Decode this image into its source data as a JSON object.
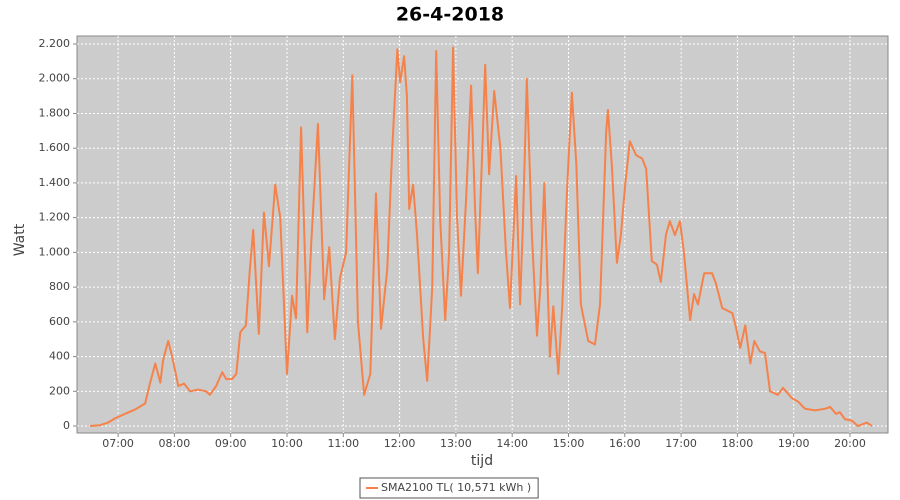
{
  "chart_data": {
    "type": "line",
    "title": "26-4-2018",
    "x_label": "tijd",
    "y_label": "Watt",
    "xlim": [
      6.27,
      20.675
    ],
    "ylim": [
      -40,
      2246
    ],
    "xticks": [
      {
        "value": 7,
        "label": "07:00"
      },
      {
        "value": 8,
        "label": "08:00"
      },
      {
        "value": 9,
        "label": "09:00"
      },
      {
        "value": 10,
        "label": "10:00"
      },
      {
        "value": 11,
        "label": "11:00"
      },
      {
        "value": 12,
        "label": "12:00"
      },
      {
        "value": 13,
        "label": "13:00"
      },
      {
        "value": 14,
        "label": "14:00"
      },
      {
        "value": 15,
        "label": "15:00"
      },
      {
        "value": 16,
        "label": "16:00"
      },
      {
        "value": 17,
        "label": "17:00"
      },
      {
        "value": 18,
        "label": "18:00"
      },
      {
        "value": 19,
        "label": "19:00"
      },
      {
        "value": 20,
        "label": "20:00"
      }
    ],
    "yticks": [
      0,
      200,
      400,
      600,
      800,
      {
        "value": 1000,
        "label": "1.000"
      },
      {
        "value": 1200,
        "label": "1.200"
      },
      {
        "value": 1400,
        "label": "1.400"
      },
      {
        "value": 1600,
        "label": "1.600"
      },
      {
        "value": 1800,
        "label": "1.800"
      },
      {
        "value": 2000,
        "label": "2.000"
      },
      {
        "value": 2200,
        "label": "2.200"
      }
    ],
    "grid": true,
    "legend": "bottom",
    "x": [
      6.5,
      6.68,
      6.82,
      6.95,
      7.12,
      7.3,
      7.48,
      7.57,
      7.66,
      7.75,
      7.8,
      7.89,
      7.96,
      8.07,
      8.17,
      8.28,
      8.42,
      8.56,
      8.63,
      8.74,
      8.85,
      8.92,
      9.02,
      9.1,
      9.17,
      9.27,
      9.34,
      9.4,
      9.5,
      9.59,
      9.68,
      9.79,
      9.88,
      10.0,
      10.09,
      10.16,
      10.25,
      10.36,
      10.43,
      10.55,
      10.66,
      10.75,
      10.85,
      10.94,
      11.05,
      11.16,
      11.26,
      11.37,
      11.48,
      11.58,
      11.67,
      11.78,
      11.87,
      11.96,
      12.01,
      12.08,
      12.13,
      12.17,
      12.24,
      12.31,
      12.42,
      12.49,
      12.58,
      12.65,
      12.72,
      12.81,
      12.88,
      12.95,
      13.02,
      13.09,
      13.18,
      13.27,
      13.34,
      13.39,
      13.47,
      13.52,
      13.59,
      13.68,
      13.79,
      13.89,
      13.96,
      14.07,
      14.14,
      14.19,
      14.26,
      14.35,
      14.44,
      14.5,
      14.57,
      14.64,
      14.67,
      14.73,
      14.82,
      14.89,
      14.98,
      15.06,
      15.14,
      15.22,
      15.35,
      15.47,
      15.56,
      15.67,
      15.7,
      15.77,
      15.86,
      15.93,
      16.01,
      16.09,
      16.2,
      16.31,
      16.38,
      16.48,
      16.57,
      16.64,
      16.73,
      16.8,
      16.89,
      16.98,
      17.05,
      17.16,
      17.23,
      17.3,
      17.41,
      17.55,
      17.62,
      17.73,
      17.91,
      17.98,
      18.05,
      18.14,
      18.23,
      18.3,
      18.4,
      18.49,
      18.58,
      18.72,
      18.81,
      18.97,
      19.08,
      19.2,
      19.38,
      19.56,
      19.65,
      19.75,
      19.82,
      19.91,
      20.04,
      20.14,
      20.3,
      20.39
    ],
    "series": [
      {
        "name": "SMA2100 TL( 10,571 kWh )",
        "color": "#f5824a",
        "values": [
          0,
          5,
          20,
          45,
          70,
          95,
          130,
          250,
          360,
          250,
          380,
          490,
          400,
          230,
          245,
          200,
          210,
          200,
          180,
          230,
          310,
          270,
          270,
          300,
          540,
          580,
          900,
          1130,
          530,
          1230,
          920,
          1390,
          1200,
          300,
          750,
          620,
          1720,
          540,
          1050,
          1740,
          730,
          1030,
          500,
          850,
          1000,
          2020,
          600,
          180,
          300,
          1340,
          560,
          900,
          1600,
          2170,
          1980,
          2130,
          1900,
          1250,
          1390,
          1100,
          500,
          260,
          800,
          2160,
          1200,
          610,
          1000,
          2180,
          1200,
          750,
          1300,
          1960,
          1250,
          880,
          1600,
          2080,
          1450,
          1930,
          1600,
          1000,
          680,
          1440,
          700,
          1160,
          2000,
          1100,
          520,
          800,
          1400,
          700,
          400,
          690,
          300,
          700,
          1400,
          1920,
          1500,
          700,
          490,
          470,
          700,
          1700,
          1820,
          1500,
          940,
          1100,
          1400,
          1640,
          1560,
          1540,
          1480,
          950,
          930,
          830,
          1100,
          1180,
          1100,
          1180,
          1000,
          610,
          760,
          700,
          880,
          880,
          820,
          680,
          650,
          560,
          450,
          580,
          360,
          490,
          430,
          420,
          200,
          180,
          220,
          160,
          140,
          100,
          90,
          100,
          110,
          70,
          80,
          40,
          30,
          0,
          20,
          0
        ]
      }
    ]
  }
}
